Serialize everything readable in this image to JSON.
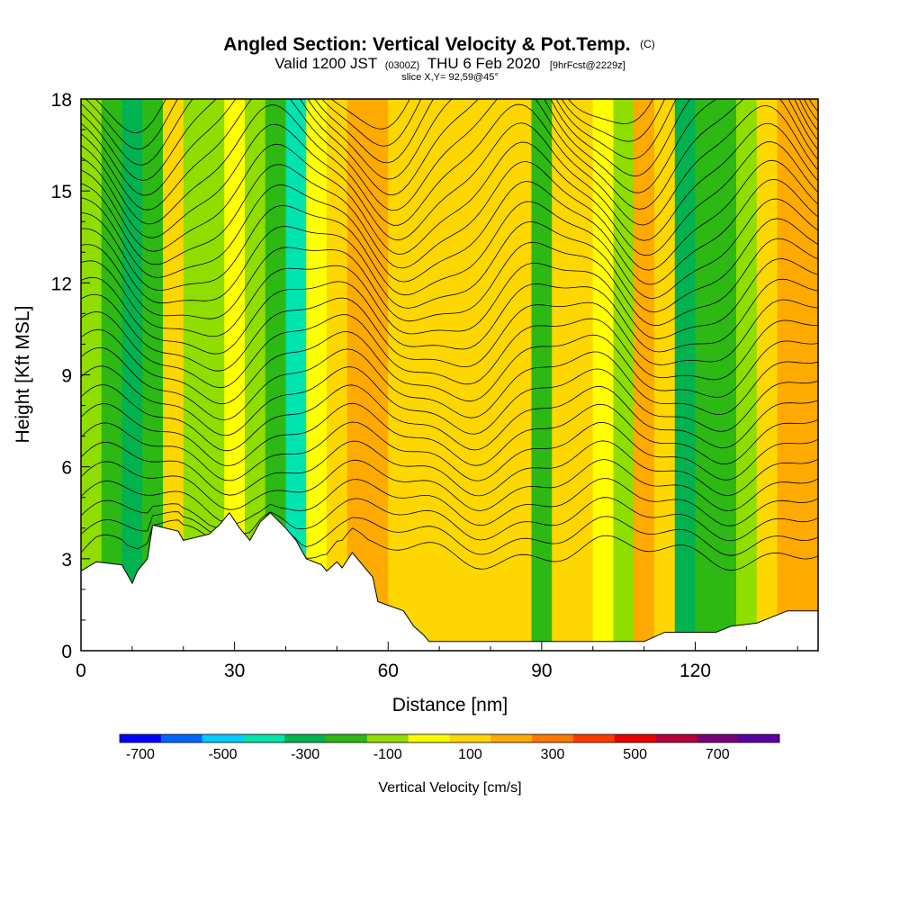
{
  "chart_data": {
    "type": "heatmap",
    "title": "Angled Section: Vertical Velocity & Pot.Temp.",
    "title_unit": "(C)",
    "subtitle_parts": [
      "Valid 1200 JST",
      "(0300Z)",
      "THU 6 Feb 2020",
      "[9hrFcst@2229z]"
    ],
    "slice_label": "slice X,Y= 92,59@45°",
    "xlabel": "Distance [nm]",
    "ylabel": "Height [Kft MSL]",
    "xlim": [
      0,
      144
    ],
    "ylim": [
      0,
      18
    ],
    "x_ticks": [
      0,
      30,
      60,
      90,
      120
    ],
    "y_ticks": [
      0,
      3,
      6,
      9,
      12,
      15,
      18
    ],
    "colorbar": {
      "label": "Vertical Velocity [cm/s]",
      "range": [
        -750,
        850
      ],
      "tick_labels": [
        "-700",
        "-500",
        "-300",
        "-100",
        "100",
        "300",
        "500",
        "700"
      ],
      "tick_values": [
        -700,
        -500,
        -300,
        -100,
        100,
        300,
        500,
        700
      ],
      "colors": [
        "#0000ff",
        "#0066ff",
        "#00ccff",
        "#00e5b0",
        "#00b350",
        "#2db814",
        "#90dd00",
        "#ffff00",
        "#ffd700",
        "#ffaa00",
        "#ff7800",
        "#ff3c00",
        "#e60000",
        "#b4003c",
        "#780078",
        "#5a00a0"
      ]
    },
    "velocity_bands": [
      {
        "x": 0,
        "w": -100
      },
      {
        "x": 4,
        "w": -220
      },
      {
        "x": 8,
        "w": -260
      },
      {
        "x": 12,
        "w": -200
      },
      {
        "x": 16,
        "w": 60
      },
      {
        "x": 20,
        "w": -130
      },
      {
        "x": 24,
        "w": -80
      },
      {
        "x": 28,
        "w": 40
      },
      {
        "x": 32,
        "w": -150
      },
      {
        "x": 36,
        "w": -200
      },
      {
        "x": 40,
        "w": -450
      },
      {
        "x": 44,
        "w": 20
      },
      {
        "x": 48,
        "w": 130
      },
      {
        "x": 52,
        "w": 230
      },
      {
        "x": 56,
        "w": 160
      },
      {
        "x": 60,
        "w": 140
      },
      {
        "x": 64,
        "w": 120
      },
      {
        "x": 68,
        "w": 110
      },
      {
        "x": 72,
        "w": 120
      },
      {
        "x": 76,
        "w": 130
      },
      {
        "x": 80,
        "w": 140
      },
      {
        "x": 84,
        "w": 80
      },
      {
        "x": 88,
        "w": -180
      },
      {
        "x": 92,
        "w": 90
      },
      {
        "x": 96,
        "w": 120
      },
      {
        "x": 100,
        "w": 40
      },
      {
        "x": 104,
        "w": -120
      },
      {
        "x": 108,
        "w": 200
      },
      {
        "x": 112,
        "w": 60
      },
      {
        "x": 116,
        "w": -320
      },
      {
        "x": 120,
        "w": -230
      },
      {
        "x": 124,
        "w": -200
      },
      {
        "x": 128,
        "w": -150
      },
      {
        "x": 132,
        "w": 100
      },
      {
        "x": 136,
        "w": 160
      },
      {
        "x": 140,
        "w": 200
      }
    ],
    "terrain": [
      {
        "x": 0,
        "h": 2.6
      },
      {
        "x": 3,
        "h": 2.9
      },
      {
        "x": 8,
        "h": 2.8
      },
      {
        "x": 10,
        "h": 2.2
      },
      {
        "x": 11,
        "h": 2.6
      },
      {
        "x": 13,
        "h": 3.0
      },
      {
        "x": 14,
        "h": 4.1
      },
      {
        "x": 19,
        "h": 3.9
      },
      {
        "x": 20,
        "h": 3.6
      },
      {
        "x": 25,
        "h": 3.8
      },
      {
        "x": 27,
        "h": 4.1
      },
      {
        "x": 29,
        "h": 4.5
      },
      {
        "x": 31,
        "h": 4.0
      },
      {
        "x": 33,
        "h": 3.6
      },
      {
        "x": 35,
        "h": 4.2
      },
      {
        "x": 37,
        "h": 4.5
      },
      {
        "x": 40,
        "h": 4.0
      },
      {
        "x": 42,
        "h": 3.6
      },
      {
        "x": 44,
        "h": 3.0
      },
      {
        "x": 47,
        "h": 2.8
      },
      {
        "x": 48,
        "h": 2.6
      },
      {
        "x": 50,
        "h": 2.9
      },
      {
        "x": 51,
        "h": 2.7
      },
      {
        "x": 53,
        "h": 3.2
      },
      {
        "x": 57,
        "h": 2.4
      },
      {
        "x": 58,
        "h": 1.6
      },
      {
        "x": 63,
        "h": 1.3
      },
      {
        "x": 65,
        "h": 0.8
      },
      {
        "x": 67,
        "h": 0.5
      },
      {
        "x": 68,
        "h": 0.3
      },
      {
        "x": 72,
        "h": 0.3
      },
      {
        "x": 110,
        "h": 0.3
      },
      {
        "x": 114,
        "h": 0.6
      },
      {
        "x": 124,
        "h": 0.6
      },
      {
        "x": 127,
        "h": 0.8
      },
      {
        "x": 132,
        "h": 0.9
      },
      {
        "x": 138,
        "h": 1.3
      },
      {
        "x": 144,
        "h": 1.3
      }
    ]
  }
}
